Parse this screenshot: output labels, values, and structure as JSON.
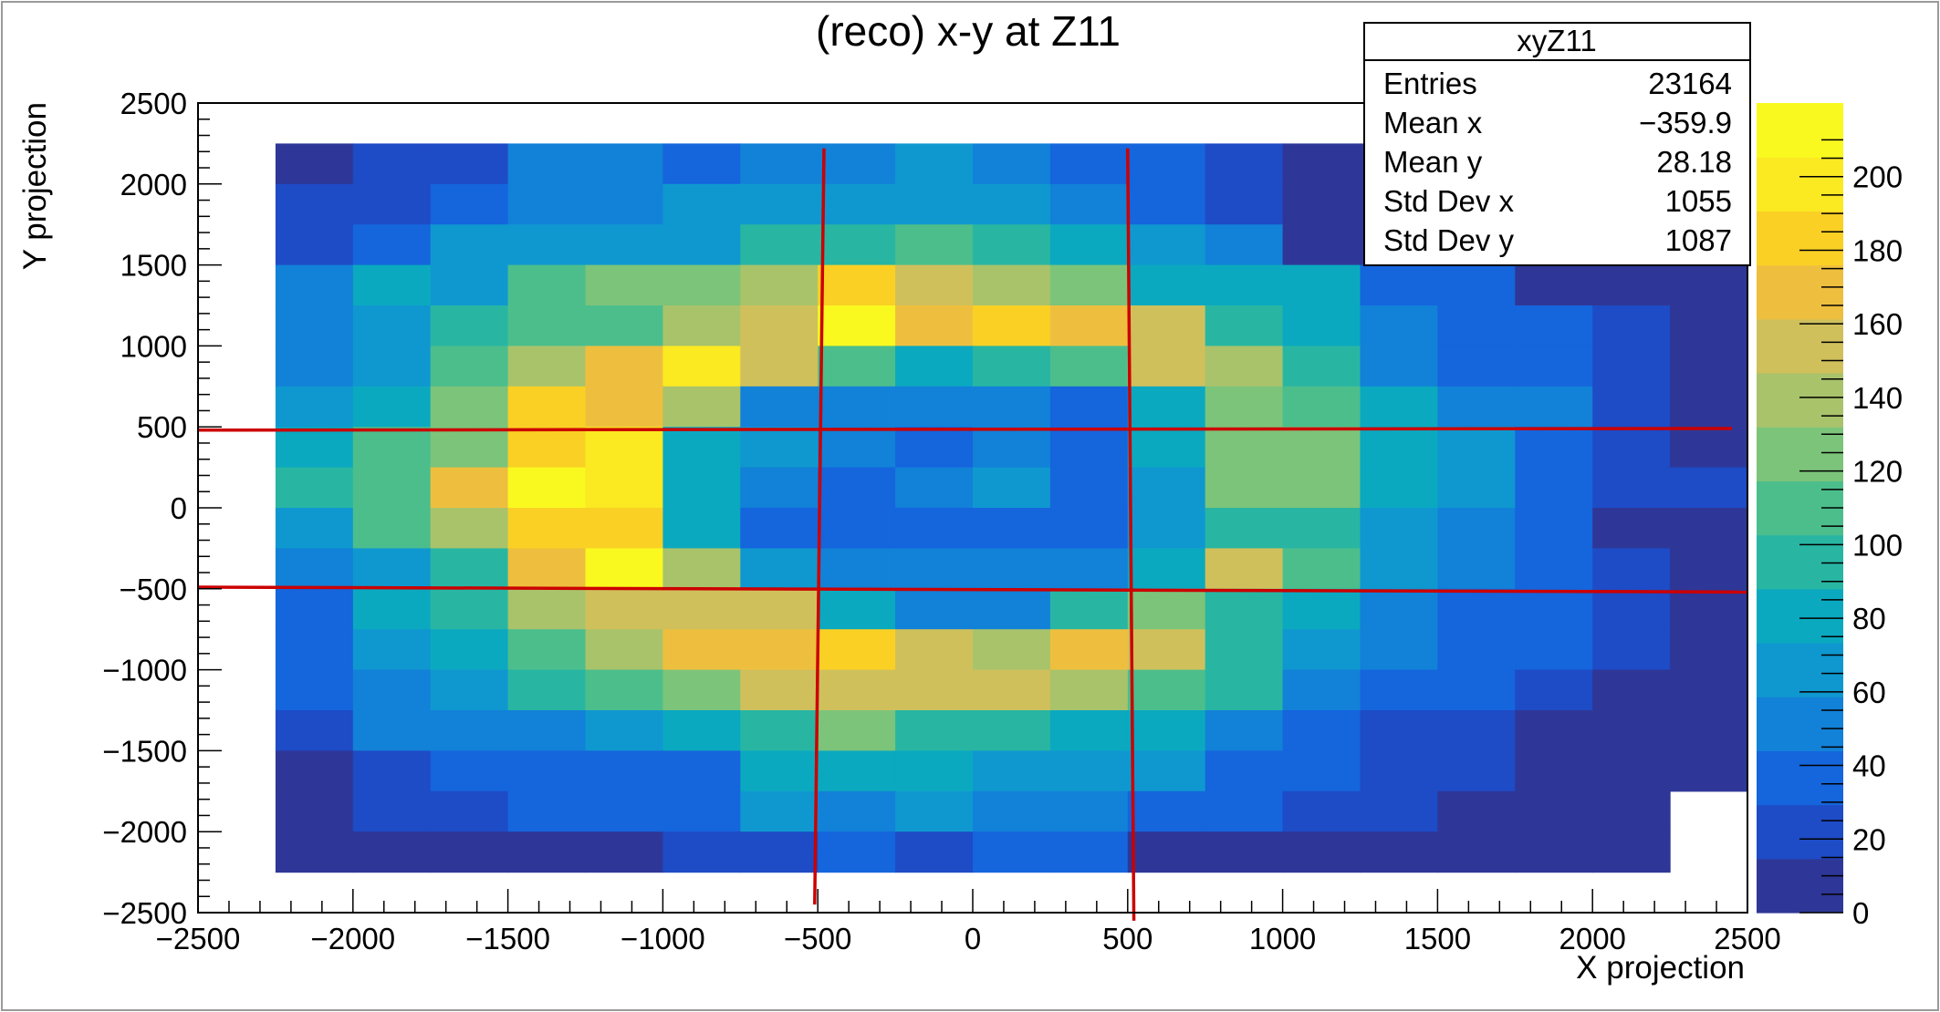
{
  "chart_data": {
    "type": "heatmap",
    "title": "(reco) x-y at Z11",
    "xlabel": "X projection",
    "ylabel": "Y projection",
    "xlim": [
      -2500,
      2500
    ],
    "ylim": [
      -2500,
      2500
    ],
    "zlim": [
      0,
      220
    ],
    "x_ticks": [
      -2500,
      -2000,
      -1500,
      -1000,
      -500,
      0,
      500,
      1000,
      1500,
      2000,
      2500
    ],
    "x_tick_labels": [
      "−2500",
      "−2000",
      "−1500",
      "−1000",
      "−500",
      "0",
      "500",
      "1000",
      "1500",
      "2000",
      "2500"
    ],
    "y_ticks": [
      -2500,
      -2000,
      -1500,
      -1000,
      -500,
      0,
      500,
      1000,
      1500,
      2000,
      2500
    ],
    "y_tick_labels": [
      "−2500",
      "−2000",
      "−1500",
      "−1000",
      "−500",
      "0",
      "500",
      "1000",
      "1500",
      "2000",
      "2500"
    ],
    "z_ticks": [
      0,
      20,
      40,
      60,
      80,
      100,
      120,
      140,
      160,
      180,
      200
    ],
    "z_tick_labels": [
      "0",
      "20",
      "40",
      "60",
      "80",
      "100",
      "120",
      "140",
      "160",
      "180",
      "200"
    ],
    "bins": {
      "x_low": -2250,
      "x_high": 2500,
      "nx": 19,
      "y_low": -2250,
      "y_high": 2250,
      "ny": 18
    },
    "values": [
      [
        5,
        15,
        15,
        45,
        50,
        40,
        55,
        45,
        65,
        55,
        40,
        30,
        15,
        0,
        0,
        0,
        0,
        0,
        0
      ],
      [
        15,
        20,
        35,
        45,
        55,
        65,
        60,
        70,
        65,
        60,
        50,
        40,
        15,
        0,
        0,
        0,
        0,
        0,
        0
      ],
      [
        15,
        30,
        60,
        60,
        60,
        70,
        95,
        100,
        115,
        100,
        75,
        60,
        45,
        0,
        0,
        0,
        0,
        0,
        0
      ],
      [
        45,
        80,
        60,
        105,
        120,
        120,
        140,
        185,
        155,
        145,
        125,
        75,
        80,
        80,
        40,
        40,
        10,
        10,
        10
      ],
      [
        45,
        60,
        95,
        115,
        110,
        140,
        160,
        215,
        175,
        185,
        165,
        150,
        90,
        80,
        50,
        40,
        40,
        20,
        10
      ],
      [
        45,
        70,
        115,
        145,
        170,
        195,
        150,
        110,
        75,
        100,
        110,
        150,
        140,
        100,
        55,
        40,
        40,
        20,
        10
      ],
      [
        70,
        75,
        130,
        185,
        170,
        145,
        55,
        45,
        45,
        50,
        40,
        85,
        130,
        115,
        80,
        55,
        45,
        25,
        10
      ],
      [
        75,
        110,
        130,
        185,
        200,
        75,
        60,
        45,
        40,
        50,
        40,
        75,
        125,
        125,
        80,
        60,
        40,
        25,
        10
      ],
      [
        100,
        110,
        170,
        215,
        195,
        80,
        45,
        40,
        50,
        60,
        40,
        70,
        120,
        120,
        80,
        60,
        40,
        25,
        15
      ],
      [
        70,
        110,
        145,
        185,
        185,
        80,
        30,
        40,
        40,
        40,
        30,
        60,
        100,
        100,
        70,
        50,
        40,
        10,
        10
      ],
      [
        55,
        70,
        100,
        170,
        220,
        140,
        60,
        50,
        50,
        50,
        45,
        80,
        150,
        110,
        60,
        50,
        30,
        20,
        10
      ],
      [
        40,
        75,
        100,
        140,
        150,
        160,
        150,
        80,
        45,
        45,
        90,
        130,
        90,
        75,
        55,
        40,
        40,
        20,
        10
      ],
      [
        30,
        65,
        80,
        110,
        140,
        175,
        170,
        180,
        155,
        140,
        170,
        150,
        100,
        70,
        45,
        40,
        30,
        20,
        10
      ],
      [
        30,
        50,
        70,
        90,
        110,
        120,
        150,
        160,
        150,
        150,
        140,
        110,
        90,
        50,
        40,
        30,
        15,
        10,
        10
      ],
      [
        20,
        45,
        50,
        55,
        70,
        75,
        90,
        120,
        100,
        100,
        85,
        75,
        50,
        40,
        20,
        15,
        10,
        10,
        10
      ],
      [
        10,
        20,
        30,
        40,
        40,
        40,
        85,
        75,
        85,
        70,
        70,
        60,
        40,
        30,
        20,
        15,
        10,
        10,
        10
      ],
      [
        10,
        15,
        20,
        30,
        40,
        40,
        60,
        50,
        60,
        50,
        50,
        40,
        30,
        20,
        20,
        10,
        10,
        10,
        null
      ],
      [
        10,
        10,
        10,
        10,
        10,
        20,
        20,
        30,
        20,
        30,
        30,
        10,
        10,
        5,
        5,
        5,
        5,
        5,
        null
      ]
    ],
    "overlay_lines": [
      {
        "x": [
          -2500,
          2450
        ],
        "y": [
          480,
          490
        ],
        "color": "#cc0000"
      },
      {
        "x": [
          -2500,
          2500
        ],
        "y": [
          -490,
          -520
        ],
        "color": "#cc0000"
      },
      {
        "x": [
          -480,
          -510
        ],
        "y": [
          2220,
          -2450
        ],
        "color": "#cc0000"
      },
      {
        "x": [
          500,
          520
        ],
        "y": [
          2220,
          -2550
        ],
        "color": "#cc0000"
      }
    ],
    "stats_box": {
      "name": "xyZ11",
      "rows": [
        {
          "label": "Entries",
          "value": "23164"
        },
        {
          "label": "Mean x",
          "value": "−359.9"
        },
        {
          "label": "Mean y",
          "value": "28.18"
        },
        {
          "label": "Std Dev x",
          "value": "1055"
        },
        {
          "label": "Std Dev y",
          "value": "1087"
        }
      ]
    },
    "colors": {
      "palette": [
        "#2e3797",
        "#1e4bc6",
        "#1565dd",
        "#1281d8",
        "#0f98d0",
        "#0aa9c0",
        "#28b6a3",
        "#4cbe8c",
        "#7cc47a",
        "#a9c36b",
        "#cfc05c",
        "#eebf3e",
        "#fad024",
        "#fbe922",
        "#f9f920"
      ],
      "overlay": "#cc0000"
    }
  }
}
